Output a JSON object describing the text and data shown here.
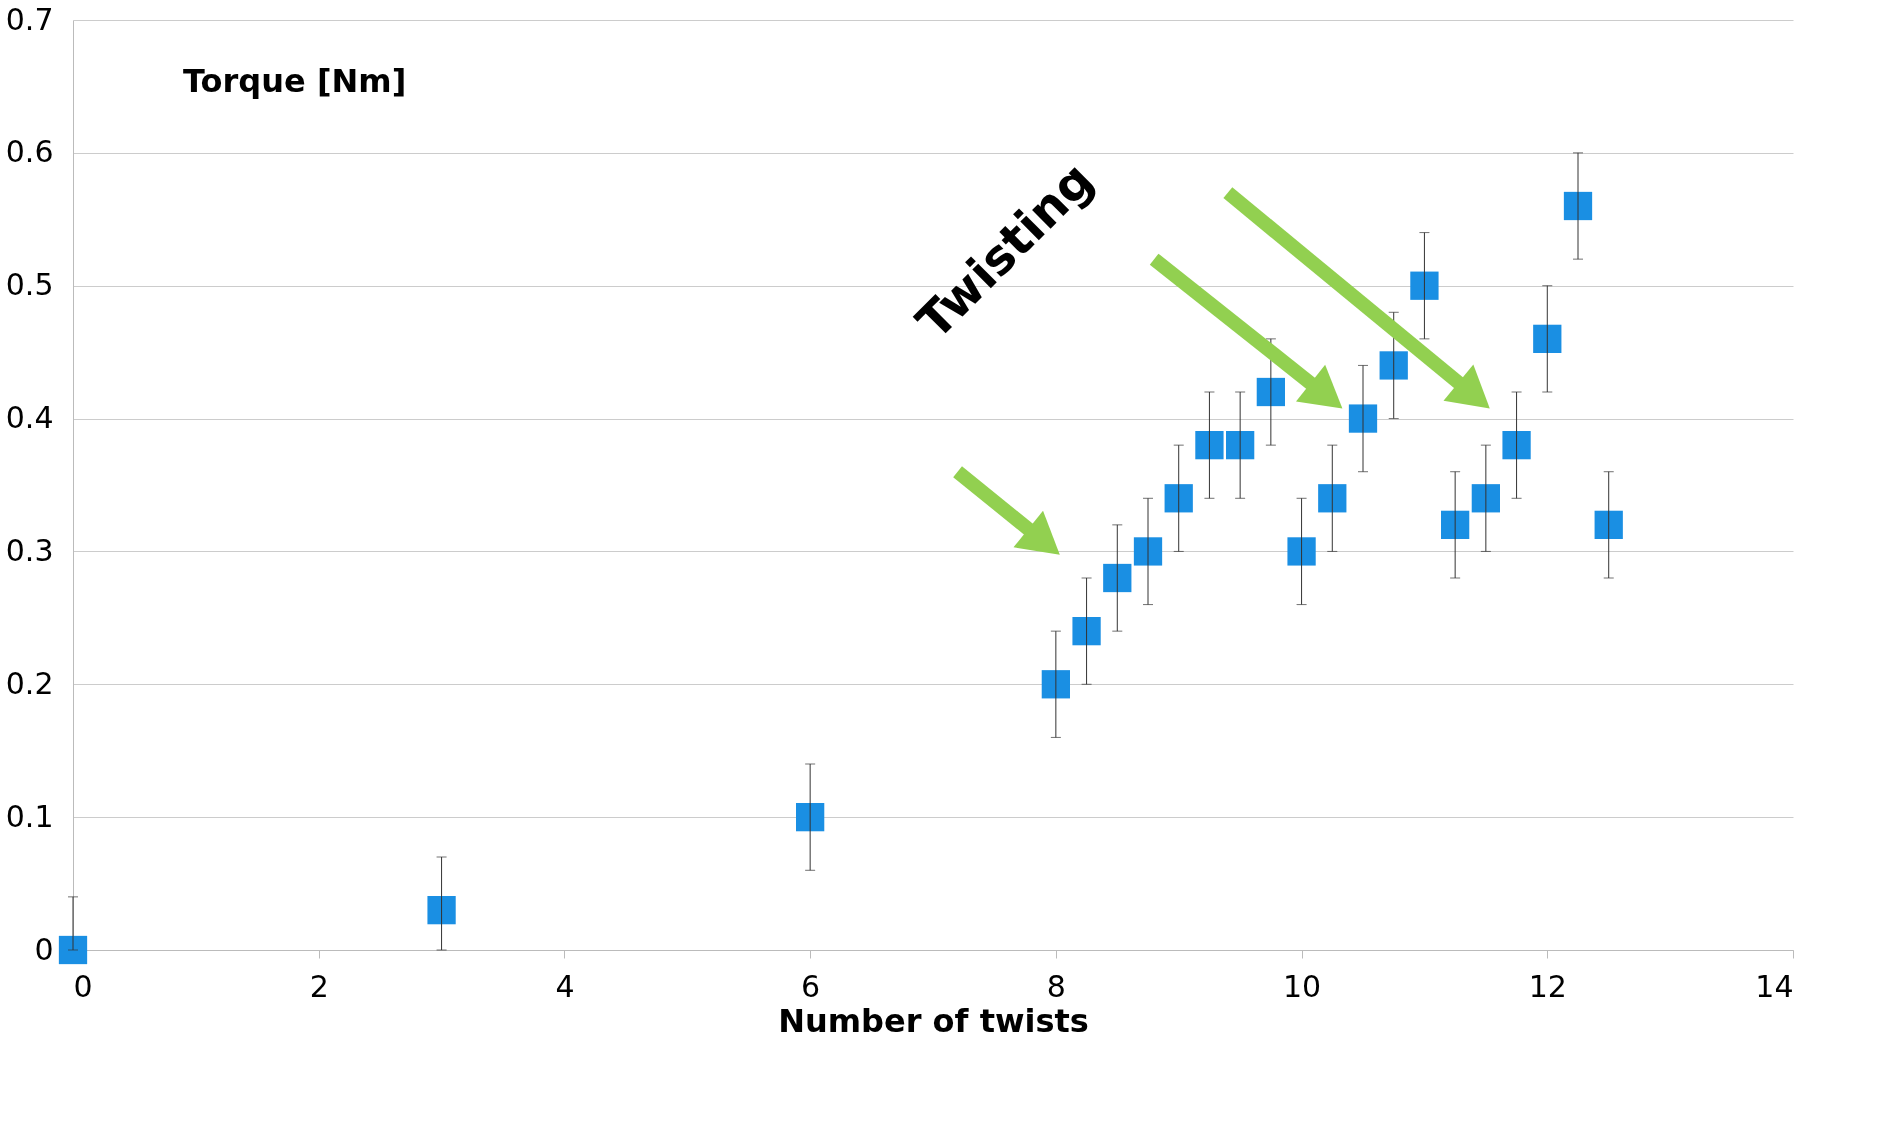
{
  "chart_data": {
    "type": "scatter",
    "ylabel": "Torque [Nm]",
    "xlabel": "Number of twists",
    "annotations": [
      "Twisting"
    ],
    "x": [
      0,
      3,
      6,
      8,
      8.25,
      8.5,
      8.75,
      9,
      9.25,
      9.5,
      9.75,
      10,
      10.25,
      10.5,
      10.75,
      11,
      11.25,
      11.5,
      11.75,
      12,
      12.25,
      12.5
    ],
    "series": [
      {
        "color": "#1a8fe3",
        "values": [
          0,
          0.03,
          0.1,
          0.2,
          0.24,
          0.28,
          0.3,
          0.34,
          0.38,
          0.38,
          0.42,
          0.3,
          0.34,
          0.4,
          0.44,
          0.5,
          0.32,
          0.34,
          0.38,
          0.46,
          0.56,
          0.32
        ],
        "errors": [
          [
            0,
            0.04
          ],
          [
            0,
            0.07
          ],
          0.04,
          0.04,
          0.04,
          0.04,
          0.04,
          0.04,
          0.04,
          0.04,
          0.04,
          0.04,
          0.04,
          0.04,
          0.04,
          0.04,
          0.04,
          0.04,
          0.04,
          0.04,
          0.04,
          0.04
        ]
      }
    ],
    "xlim": [
      0,
      14
    ],
    "xticks": [
      0,
      2,
      4,
      6,
      8,
      10,
      12,
      14
    ],
    "ylim": [
      0,
      0.7
    ],
    "yticks": [
      0,
      0.1,
      0.2,
      0.3,
      0.4,
      0.5,
      0.6,
      0.7
    ],
    "grid": "y",
    "marker": "square"
  }
}
